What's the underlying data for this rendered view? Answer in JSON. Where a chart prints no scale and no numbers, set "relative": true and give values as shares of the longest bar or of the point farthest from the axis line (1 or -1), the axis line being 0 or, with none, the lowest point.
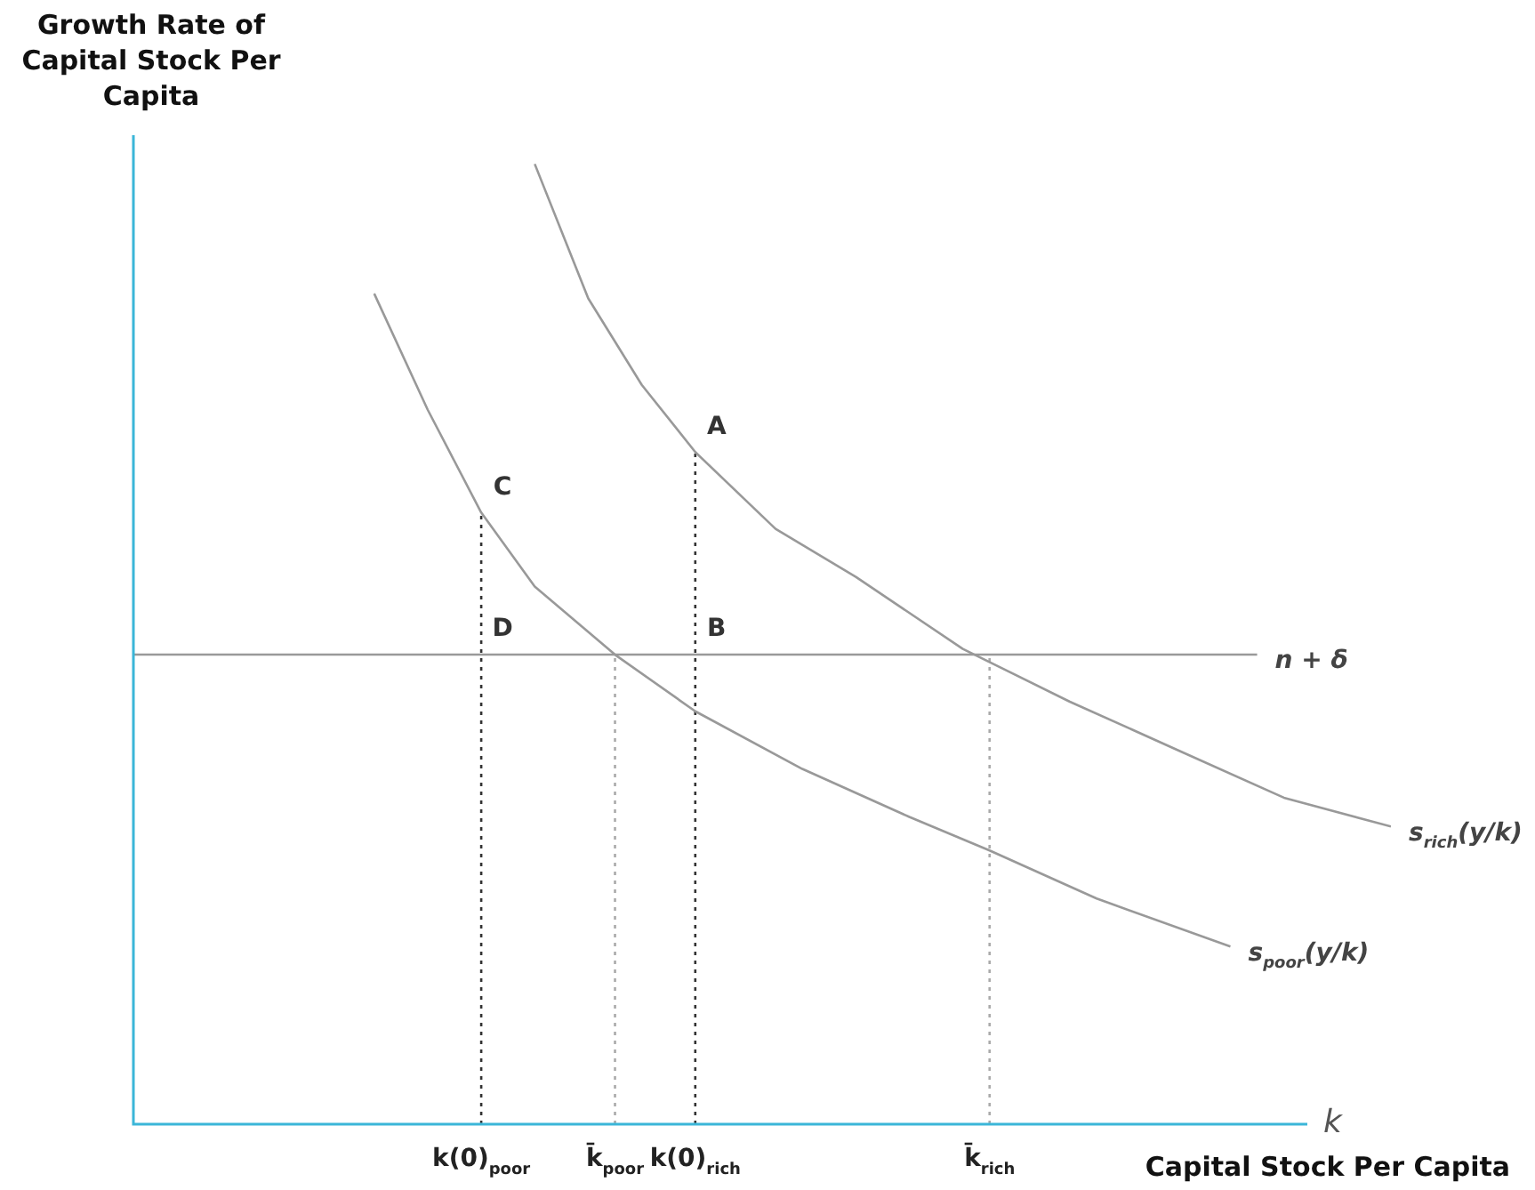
{
  "chart_data": {
    "type": "line",
    "relative": true,
    "ylabel": "Growth Rate of Capital Stock Per Capita",
    "xlabel": "k",
    "annotations": [
      "Capital Stock Per Capita",
      {
        "text": "A",
        "x": "k(0)$_{rich}$",
        "y": 0.7
      },
      {
        "text": "B",
        "x": "k(0)$_{rich}$",
        "y": 0.489
      },
      {
        "text": "C",
        "x": "k(0)$_{poor}$",
        "y": 0.637
      },
      {
        "text": "D",
        "x": "k(0)$_{poor}$",
        "y": 0.489
      }
    ],
    "categories": [
      null,
      null,
      null,
      null,
      null,
      null,
      null,
      null,
      null,
      null,
      null,
      null,
      null,
      "k(0)$_{poor}$",
      null,
      null,
      null,
      null,
      "k̄$_{poor}$",
      null,
      null,
      "k(0)$_{rich}$",
      null,
      null,
      null,
      null,
      null,
      null,
      null,
      null,
      null,
      null,
      "k̄$_{rich}$",
      null,
      null,
      null,
      null,
      null,
      null,
      null,
      null,
      null,
      null,
      null,
      null,
      null,
      null,
      null
    ],
    "series": [
      {
        "name": "s$_{rich}$(y/k)",
        "color": "#999999",
        "values": [
          null,
          null,
          null,
          null,
          null,
          null,
          null,
          null,
          null,
          null,
          null,
          null,
          null,
          null,
          null,
          1,
          null,
          0.86,
          null,
          0.77,
          null,
          0.7,
          null,
          null,
          0.62,
          null,
          null,
          0.57,
          null,
          null,
          null,
          0.495,
          null,
          null,
          null,
          0.44,
          null,
          null,
          null,
          0.39,
          null,
          null,
          null,
          0.34,
          null,
          null,
          null,
          0.31
        ]
      },
      {
        "name": "s$_{poor}$(y/k)",
        "color": "#999999",
        "values": [
          null,
          null,
          null,
          null,
          null,
          null,
          null,
          null,
          null,
          0.865,
          null,
          0.744,
          null,
          0.637,
          null,
          0.56,
          null,
          null,
          0.489,
          null,
          null,
          0.43,
          null,
          null,
          null,
          0.37,
          null,
          null,
          null,
          0.32,
          null,
          null,
          0.285,
          null,
          null,
          null,
          0.235,
          null,
          null,
          null,
          null,
          0.185,
          null,
          null,
          null,
          null,
          null,
          null
        ]
      },
      {
        "name": "n + δ",
        "color": "#999999",
        "values": [
          0.489,
          null,
          null,
          null,
          null,
          null,
          null,
          null,
          null,
          null,
          null,
          null,
          null,
          null,
          null,
          null,
          null,
          null,
          null,
          null,
          null,
          null,
          null,
          null,
          null,
          null,
          null,
          null,
          null,
          null,
          null,
          null,
          null,
          null,
          null,
          null,
          null,
          null,
          null,
          null,
          null,
          null,
          0.489,
          null,
          null,
          null,
          null,
          null
        ]
      },
      {
        "color": "#333333",
        "line_style": "dotted",
        "x": [
          "k(0)$_{poor}$",
          "k(0)$_{poor}$"
        ],
        "values": [
          0,
          0.637
        ]
      },
      {
        "color": "#aaaaaa",
        "line_style": "dotted",
        "x": [
          "k̄$_{poor}$",
          "k̄$_{poor}$"
        ],
        "values": [
          0,
          0.489
        ]
      },
      {
        "color": "#333333",
        "line_style": "dotted",
        "x": [
          "k(0)$_{rich}$",
          "k(0)$_{rich}$"
        ],
        "values": [
          0,
          0.7
        ]
      },
      {
        "color": "#aaaaaa",
        "line_style": "dotted",
        "x": [
          "k̄$_{rich}$",
          "k̄$_{rich}$"
        ],
        "values": [
          0,
          0.489
        ]
      }
    ]
  }
}
